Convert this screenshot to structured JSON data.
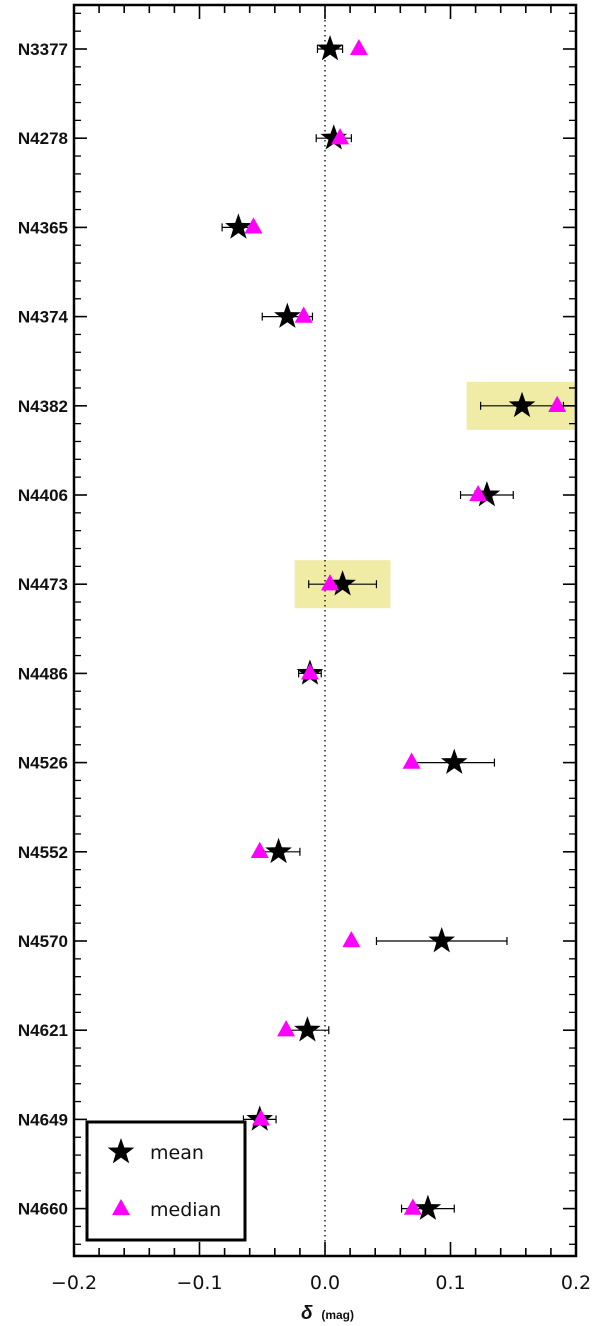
{
  "chart_data": {
    "type": "scatter",
    "categories": [
      "N3377",
      "N4278",
      "N4365",
      "N4374",
      "N4382",
      "N4406",
      "N4473",
      "N4486",
      "N4526",
      "N4552",
      "N4570",
      "N4621",
      "N4649",
      "N4660"
    ],
    "xlabel": "δ",
    "xlabel_unit": "(mag)",
    "xlim": [
      -0.2,
      0.2
    ],
    "xticks": [
      -0.2,
      -0.1,
      0.0,
      0.1,
      0.2
    ],
    "xtick_labels": [
      "−0.2",
      "−0.1",
      "0.0",
      "0.1",
      "0.2"
    ],
    "reference_line": 0.0,
    "series": [
      {
        "name": "mean",
        "marker": "star",
        "color": "#000000",
        "values": [
          0.004,
          0.007,
          -0.069,
          -0.03,
          0.157,
          0.129,
          0.014,
          -0.012,
          0.103,
          -0.037,
          0.093,
          -0.014,
          -0.052,
          0.082
        ],
        "err": [
          0.01,
          0.014,
          0.013,
          0.02,
          0.033,
          0.021,
          0.027,
          0.009,
          0.032,
          0.017,
          0.052,
          0.017,
          0.013,
          0.021
        ]
      },
      {
        "name": "median",
        "marker": "triangle",
        "color": "#ff00ff",
        "values": [
          0.027,
          0.012,
          -0.057,
          -0.017,
          0.185,
          0.122,
          0.004,
          -0.012,
          0.069,
          -0.052,
          0.021,
          -0.031,
          -0.051,
          0.07
        ]
      }
    ],
    "highlighted": [
      "N4382",
      "N4473"
    ],
    "highlight_color": "#f0eba5",
    "legend": {
      "position": "bottom-left",
      "entries": [
        "mean",
        "median"
      ]
    }
  }
}
